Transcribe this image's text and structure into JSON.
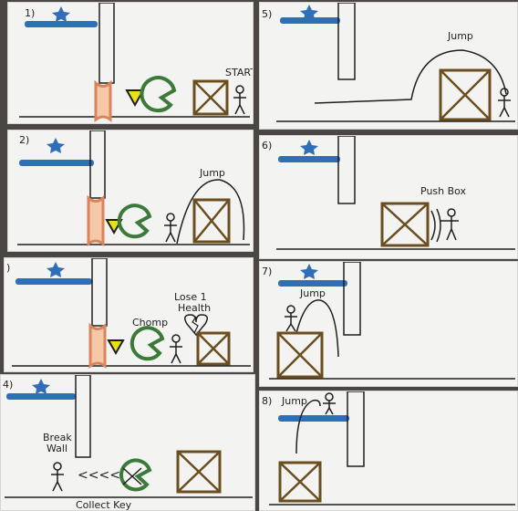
{
  "storyboard": {
    "panels": [
      {
        "number": "1)",
        "labels": {
          "start": "START"
        }
      },
      {
        "number": "2)",
        "labels": {
          "jump": "Jump"
        }
      },
      {
        "number": ")",
        "labels": {
          "chomp": "Chomp",
          "lose_health_1": "Lose 1",
          "lose_health_2": "Health"
        }
      },
      {
        "number": "4)",
        "labels": {
          "break_1": "Break",
          "break_2": "Wall",
          "arrows": "<<<<",
          "collect_key": "Collect Key"
        }
      },
      {
        "number": "5)",
        "labels": {
          "jump": "Jump"
        }
      },
      {
        "number": "6)",
        "labels": {
          "push_box": "Push Box"
        }
      },
      {
        "number": "7)",
        "labels": {
          "jump": "Jump"
        }
      },
      {
        "number": "8)",
        "labels": {
          "jump": "Jump"
        }
      }
    ]
  },
  "colors": {
    "paper": "#f3f3f1",
    "ink": "#1e1e1e",
    "platform_blue": "#2f6fb8",
    "star_blue": "#2f6fb8",
    "wall_orange": "#d9845a",
    "monster_green": "#3c7a3a",
    "key_yellow": "#e8e01a",
    "box_brown": "#6b4e1f"
  },
  "icons": [
    "star-icon",
    "wall-icon",
    "monster-icon",
    "key-icon",
    "box-icon",
    "stick-figure-icon",
    "broken-heart-icon"
  ]
}
